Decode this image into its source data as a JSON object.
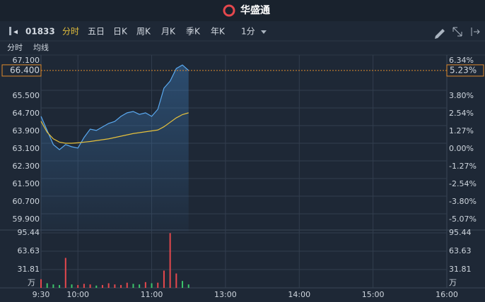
{
  "header": {
    "brand": "华盛通"
  },
  "toolbar": {
    "code": "01833",
    "tabs": [
      "分时",
      "五日",
      "日K",
      "周K",
      "月K",
      "季K",
      "年K"
    ],
    "period": "1分"
  },
  "chart_data": [
    {
      "type": "line",
      "x": [
        "9:30",
        "9:35",
        "9:40",
        "9:45",
        "9:50",
        "9:55",
        "10:00",
        "10:05",
        "10:10",
        "10:15",
        "10:20",
        "10:25",
        "10:30",
        "10:35",
        "10:40",
        "10:45",
        "10:50",
        "10:55",
        "11:00",
        "11:05",
        "11:10",
        "11:15",
        "11:20",
        "11:25",
        "11:30"
      ],
      "series": [
        {
          "name": "分时",
          "color": "#5aa9f0",
          "values": [
            64.32,
            63.68,
            63.04,
            62.81,
            63.04,
            62.94,
            62.88,
            63.36,
            63.74,
            63.68,
            63.84,
            64.0,
            64.09,
            64.32,
            64.48,
            64.54,
            64.41,
            64.48,
            64.32,
            64.64,
            65.6,
            65.92,
            66.49,
            66.65,
            66.4
          ]
        },
        {
          "name": "均线",
          "color": "#e6c13c",
          "values": [
            64.1,
            63.6,
            63.3,
            63.15,
            63.1,
            63.1,
            63.12,
            63.15,
            63.18,
            63.22,
            63.26,
            63.3,
            63.36,
            63.42,
            63.48,
            63.54,
            63.58,
            63.62,
            63.66,
            63.7,
            63.85,
            64.05,
            64.25,
            64.4,
            64.48
          ]
        }
      ],
      "xlim": [
        "9:30",
        "16:00"
      ],
      "xticks": [
        "9:30",
        "10:00",
        "11:00",
        "13:00",
        "14:00",
        "15:00",
        "16:00"
      ],
      "ylim": [
        59.1,
        67.1
      ],
      "yticks": [
        {
          "value": 67.1,
          "label": "67.100"
        },
        {
          "value": 65.5,
          "label": "65.500"
        },
        {
          "value": 64.7,
          "label": "64.700"
        },
        {
          "value": 63.9,
          "label": "63.900"
        },
        {
          "value": 63.1,
          "label": "63.100"
        },
        {
          "value": 62.3,
          "label": "62.300"
        },
        {
          "value": 61.5,
          "label": "61.500"
        },
        {
          "value": 60.7,
          "label": "60.700"
        },
        {
          "value": 59.9,
          "label": "59.900"
        }
      ],
      "y2lim": [
        -6.34,
        6.34
      ],
      "y2ticks": [
        {
          "value": 6.34,
          "label": "6.34%"
        },
        {
          "value": 3.8,
          "label": "3.80%"
        },
        {
          "value": 2.54,
          "label": "2.54%"
        },
        {
          "value": 1.27,
          "label": "1.27%"
        },
        {
          "value": 0,
          "label": "0.00%"
        },
        {
          "value": -1.27,
          "label": "-1.27%"
        },
        {
          "value": -2.54,
          "label": "-2.54%"
        },
        {
          "value": -3.8,
          "label": "-3.80%"
        },
        {
          "value": -5.07,
          "label": "-5.07%"
        }
      ],
      "last_price": {
        "value": 66.4,
        "label": "66.400"
      },
      "last_change": {
        "value": 5.23,
        "label": "5.23%"
      },
      "up_color": "#e5484d",
      "down_color": "#3cc46a",
      "flat_color": "#cfd6de"
    },
    {
      "type": "bar",
      "x": [
        "9:30",
        "9:35",
        "9:40",
        "9:45",
        "9:50",
        "9:55",
        "10:00",
        "10:05",
        "10:10",
        "10:15",
        "10:20",
        "10:25",
        "10:30",
        "10:35",
        "10:40",
        "10:45",
        "10:50",
        "10:55",
        "11:00",
        "11:05",
        "11:10",
        "11:15",
        "11:20",
        "11:25",
        "11:30"
      ],
      "values": [
        15,
        8,
        6,
        5,
        52,
        6,
        5,
        7,
        6,
        4,
        5,
        8,
        6,
        5,
        9,
        7,
        6,
        10,
        8,
        9,
        30,
        95,
        25,
        12,
        6
      ],
      "colors": [
        "#e5484d",
        "#3cc46a",
        "#3cc46a",
        "#3cc46a",
        "#e5484d",
        "#3cc46a",
        "#e5484d",
        "#e5484d",
        "#e5484d",
        "#3cc46a",
        "#e5484d",
        "#e5484d",
        "#e5484d",
        "#e5484d",
        "#e5484d",
        "#3cc46a",
        "#3cc46a",
        "#e5484d",
        "#3cc46a",
        "#e5484d",
        "#e5484d",
        "#e5484d",
        "#e5484d",
        "#3cc46a",
        "#3cc46a"
      ],
      "ylim": [
        0,
        95.44
      ],
      "yticks": [
        31.81,
        63.63,
        95.44
      ],
      "unit": "万"
    }
  ]
}
